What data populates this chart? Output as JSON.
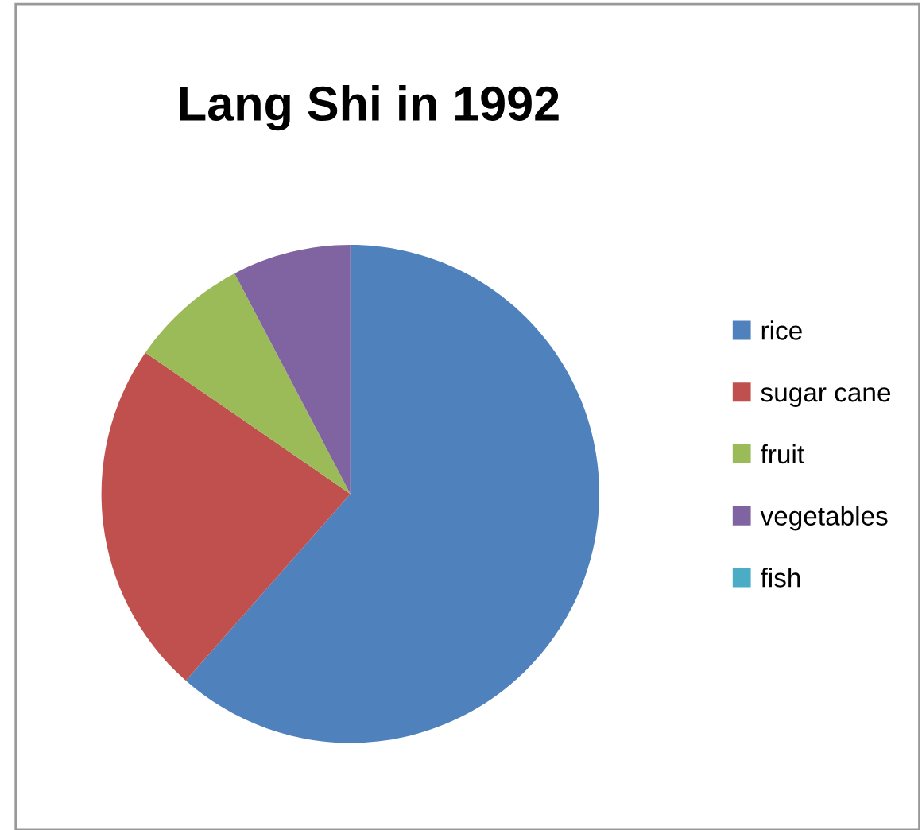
{
  "chart_data": {
    "type": "pie",
    "title": "Lang Shi in 1992",
    "categories": [
      "rice",
      "sugar cane",
      "fruit",
      "vegetables",
      "fish"
    ],
    "values": [
      61.5,
      23.1,
      7.7,
      7.7,
      0
    ],
    "colors": [
      "#4f81bd",
      "#c0504d",
      "#9bbb59",
      "#8064a2",
      "#4bacc6"
    ],
    "legend": "right"
  }
}
